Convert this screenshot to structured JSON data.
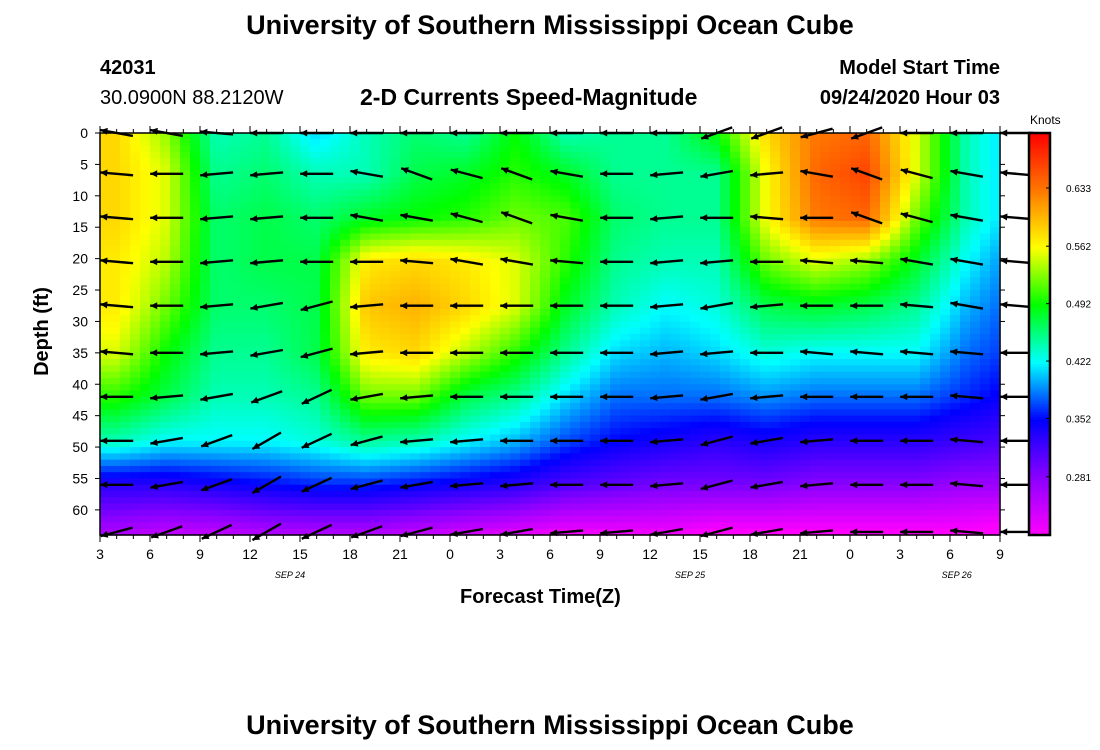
{
  "page": {
    "title_top": "University of Southern Mississippi Ocean Cube",
    "title_bottom": "University of Southern Mississippi Ocean Cube",
    "station_id": "42031",
    "station_coords": "30.0900N 88.2120W",
    "model_start_label": "Model Start Time",
    "model_start_value": "09/24/2020 Hour 03"
  },
  "chart_data": {
    "type": "heatmap",
    "title": "2-D Currents Speed-Magnitude",
    "xlabel": "Forecast Time(Z)",
    "ylabel": "Depth (ft)",
    "colorbar_label": "Knots",
    "x_tick_labels": [
      "3",
      "6",
      "9",
      "12",
      "15",
      "18",
      "21",
      "0",
      "3",
      "6",
      "9",
      "12",
      "15",
      "18",
      "21",
      "0",
      "3",
      "6",
      "9"
    ],
    "x_date_labels": [
      "SEP 24",
      "SEP 25",
      "SEP 26"
    ],
    "x_range_hours": [
      3,
      57
    ],
    "y_tick_labels": [
      "0",
      "5",
      "10",
      "15",
      "20",
      "25",
      "30",
      "35",
      "40",
      "45",
      "50",
      "55",
      "60"
    ],
    "ylim": [
      0,
      64
    ],
    "colorbar_ticks": [
      "0.633",
      "0.562",
      "0.492",
      "0.422",
      "0.352",
      "0.281"
    ],
    "colorbar_range": [
      0.21,
      0.7
    ],
    "color_stops": [
      "#ff00ff",
      "#8a00ff",
      "#0000ff",
      "#00ffff",
      "#00ff00",
      "#ffff00",
      "#ff7700",
      "#ff0000"
    ],
    "depths_ft": [
      0,
      6.5,
      13.5,
      20.5,
      27.5,
      35,
      42,
      49,
      56,
      63.5
    ],
    "hours": [
      4,
      7,
      10,
      13,
      16,
      19,
      22,
      25,
      28,
      31,
      34,
      37,
      40,
      43,
      46,
      49,
      52,
      55,
      58
    ],
    "speed_knots": [
      [
        0.58,
        0.53,
        0.44,
        0.45,
        0.41,
        0.44,
        0.46,
        0.45,
        0.49,
        0.44,
        0.45,
        0.45,
        0.49,
        0.58,
        0.63,
        0.64,
        0.55,
        0.44,
        0.4
      ],
      [
        0.58,
        0.55,
        0.45,
        0.46,
        0.44,
        0.44,
        0.47,
        0.48,
        0.5,
        0.48,
        0.45,
        0.45,
        0.45,
        0.56,
        0.64,
        0.66,
        0.55,
        0.44,
        0.4
      ],
      [
        0.58,
        0.55,
        0.46,
        0.47,
        0.46,
        0.48,
        0.49,
        0.5,
        0.52,
        0.51,
        0.46,
        0.45,
        0.45,
        0.56,
        0.63,
        0.64,
        0.52,
        0.44,
        0.4
      ],
      [
        0.57,
        0.54,
        0.46,
        0.47,
        0.47,
        0.57,
        0.58,
        0.57,
        0.55,
        0.5,
        0.45,
        0.44,
        0.44,
        0.52,
        0.55,
        0.53,
        0.48,
        0.42,
        0.38
      ],
      [
        0.57,
        0.52,
        0.46,
        0.46,
        0.47,
        0.59,
        0.6,
        0.58,
        0.55,
        0.48,
        0.44,
        0.42,
        0.43,
        0.47,
        0.48,
        0.47,
        0.45,
        0.4,
        0.37
      ],
      [
        0.55,
        0.49,
        0.45,
        0.45,
        0.47,
        0.57,
        0.58,
        0.54,
        0.5,
        0.45,
        0.41,
        0.4,
        0.41,
        0.43,
        0.42,
        0.42,
        0.42,
        0.38,
        0.36
      ],
      [
        0.5,
        0.47,
        0.44,
        0.44,
        0.45,
        0.52,
        0.52,
        0.47,
        0.45,
        0.41,
        0.38,
        0.38,
        0.38,
        0.39,
        0.38,
        0.38,
        0.38,
        0.36,
        0.34
      ],
      [
        0.44,
        0.42,
        0.42,
        0.42,
        0.43,
        0.45,
        0.44,
        0.42,
        0.4,
        0.37,
        0.35,
        0.34,
        0.33,
        0.34,
        0.33,
        0.33,
        0.33,
        0.32,
        0.31
      ],
      [
        0.33,
        0.33,
        0.34,
        0.35,
        0.36,
        0.36,
        0.35,
        0.34,
        0.33,
        0.31,
        0.3,
        0.29,
        0.29,
        0.29,
        0.28,
        0.28,
        0.28,
        0.27,
        0.27
      ],
      [
        0.26,
        0.25,
        0.25,
        0.26,
        0.26,
        0.26,
        0.25,
        0.24,
        0.23,
        0.22,
        0.22,
        0.22,
        0.21,
        0.21,
        0.21,
        0.21,
        0.21,
        0.21,
        0.2
      ]
    ],
    "arrow_direction_deg": [
      [
        170,
        170,
        175,
        180,
        180,
        180,
        180,
        180,
        180,
        180,
        180,
        180,
        200,
        200,
        195,
        200,
        180,
        180,
        180
      ],
      [
        175,
        180,
        185,
        185,
        180,
        170,
        160,
        165,
        160,
        170,
        180,
        185,
        190,
        185,
        170,
        160,
        165,
        170,
        175
      ],
      [
        175,
        180,
        185,
        185,
        180,
        170,
        170,
        165,
        160,
        170,
        180,
        185,
        180,
        175,
        180,
        160,
        165,
        170,
        175
      ],
      [
        175,
        180,
        185,
        185,
        180,
        180,
        175,
        170,
        170,
        175,
        180,
        185,
        185,
        180,
        175,
        175,
        170,
        170,
        175
      ],
      [
        175,
        180,
        185,
        190,
        195,
        185,
        180,
        180,
        180,
        180,
        180,
        185,
        190,
        185,
        180,
        180,
        175,
        170,
        175
      ],
      [
        175,
        180,
        185,
        190,
        195,
        185,
        180,
        180,
        180,
        180,
        180,
        185,
        185,
        180,
        175,
        175,
        175,
        175,
        180
      ],
      [
        180,
        185,
        190,
        200,
        205,
        190,
        185,
        180,
        180,
        180,
        180,
        185,
        190,
        185,
        180,
        180,
        180,
        175,
        180
      ],
      [
        180,
        190,
        200,
        210,
        205,
        195,
        185,
        185,
        180,
        180,
        180,
        185,
        195,
        190,
        185,
        180,
        180,
        175,
        180
      ],
      [
        180,
        190,
        200,
        210,
        205,
        195,
        190,
        185,
        185,
        180,
        180,
        185,
        195,
        190,
        185,
        180,
        180,
        175,
        180
      ],
      [
        195,
        200,
        205,
        210,
        205,
        200,
        195,
        190,
        190,
        185,
        185,
        190,
        195,
        190,
        185,
        180,
        180,
        175,
        180
      ]
    ]
  }
}
